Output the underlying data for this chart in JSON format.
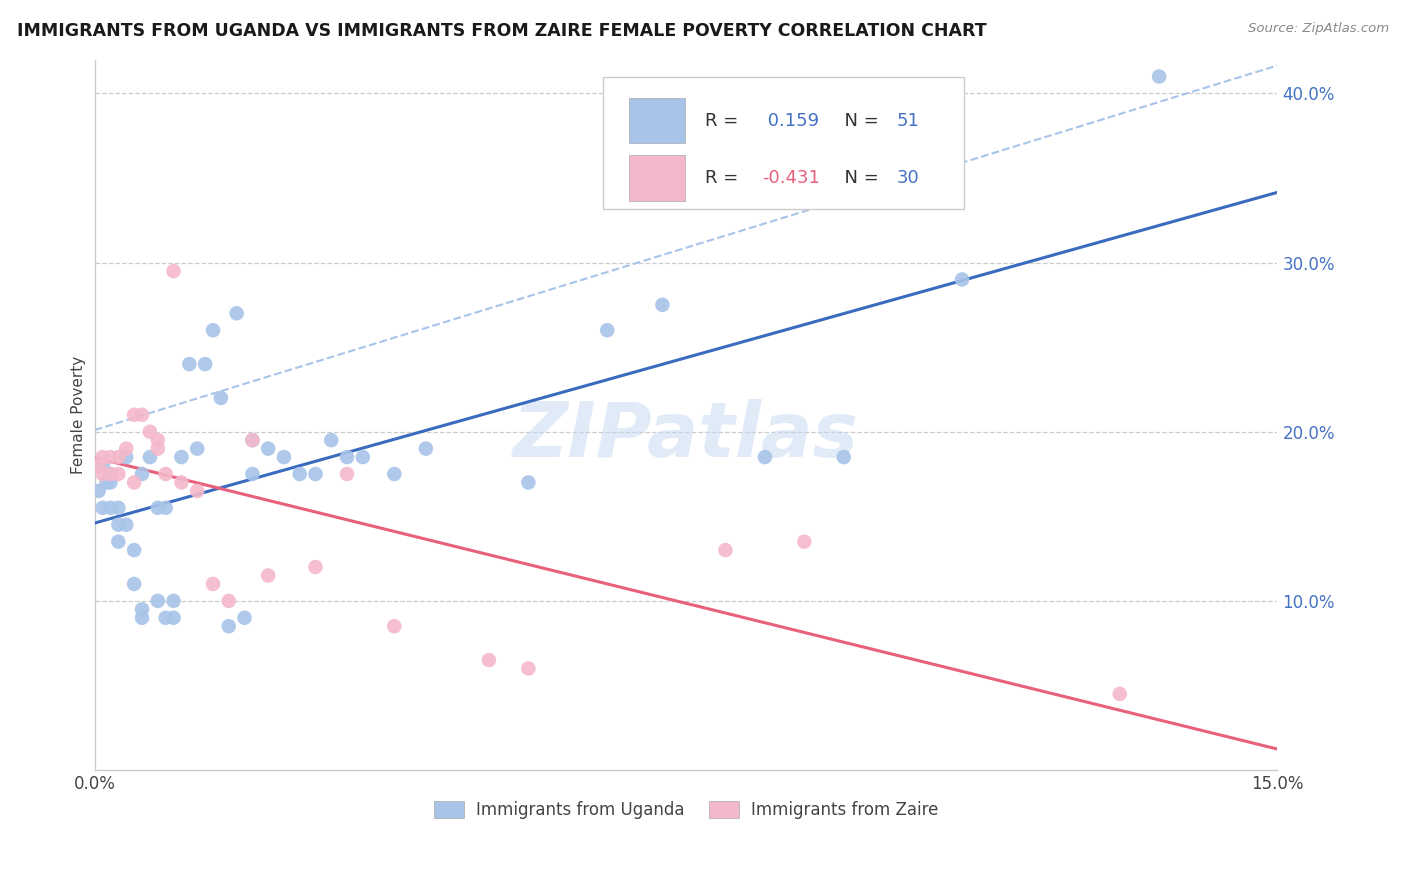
{
  "title": "IMMIGRANTS FROM UGANDA VS IMMIGRANTS FROM ZAIRE FEMALE POVERTY CORRELATION CHART",
  "source": "Source: ZipAtlas.com",
  "ylabel": "Female Poverty",
  "xlim": [
    0.0,
    0.15
  ],
  "ylim": [
    0.0,
    0.42
  ],
  "uganda_color": "#a8c4e8",
  "zaire_color": "#f4b8cb",
  "uganda_line_color": "#3a6bbf",
  "zaire_line_color": "#e8607a",
  "dash_line_color": "#a8c4e8",
  "R_uganda": 0.159,
  "N_uganda": 51,
  "R_zaire": -0.431,
  "N_zaire": 30,
  "legend_label_uganda": "Immigrants from Uganda",
  "legend_label_zaire": "Immigrants from Zaire",
  "watermark": "ZIPatlas",
  "text_color": "#444444",
  "right_axis_color": "#4472c4",
  "grid_color": "#cccccc",
  "uganda_x": [
    0.0005,
    0.001,
    0.001,
    0.0015,
    0.002,
    0.002,
    0.002,
    0.003,
    0.003,
    0.003,
    0.004,
    0.004,
    0.005,
    0.005,
    0.006,
    0.006,
    0.006,
    0.007,
    0.008,
    0.008,
    0.009,
    0.009,
    0.01,
    0.01,
    0.011,
    0.012,
    0.013,
    0.014,
    0.015,
    0.016,
    0.017,
    0.018,
    0.019,
    0.02,
    0.02,
    0.022,
    0.024,
    0.026,
    0.028,
    0.03,
    0.032,
    0.034,
    0.038,
    0.042,
    0.055,
    0.065,
    0.072,
    0.085,
    0.095,
    0.11,
    0.135
  ],
  "uganda_y": [
    0.165,
    0.18,
    0.155,
    0.17,
    0.17,
    0.155,
    0.175,
    0.155,
    0.145,
    0.135,
    0.145,
    0.185,
    0.13,
    0.11,
    0.095,
    0.09,
    0.175,
    0.185,
    0.1,
    0.155,
    0.09,
    0.155,
    0.1,
    0.09,
    0.185,
    0.24,
    0.19,
    0.24,
    0.26,
    0.22,
    0.085,
    0.27,
    0.09,
    0.175,
    0.195,
    0.19,
    0.185,
    0.175,
    0.175,
    0.195,
    0.185,
    0.185,
    0.175,
    0.19,
    0.17,
    0.26,
    0.275,
    0.185,
    0.185,
    0.29,
    0.41
  ],
  "zaire_x": [
    0.0005,
    0.001,
    0.001,
    0.002,
    0.002,
    0.003,
    0.003,
    0.004,
    0.005,
    0.005,
    0.006,
    0.007,
    0.008,
    0.008,
    0.009,
    0.01,
    0.011,
    0.013,
    0.015,
    0.017,
    0.02,
    0.022,
    0.028,
    0.032,
    0.038,
    0.05,
    0.055,
    0.08,
    0.09,
    0.13
  ],
  "zaire_y": [
    0.18,
    0.175,
    0.185,
    0.185,
    0.175,
    0.185,
    0.175,
    0.19,
    0.17,
    0.21,
    0.21,
    0.2,
    0.19,
    0.195,
    0.175,
    0.295,
    0.17,
    0.165,
    0.11,
    0.1,
    0.195,
    0.115,
    0.12,
    0.175,
    0.085,
    0.065,
    0.06,
    0.13,
    0.135,
    0.045
  ]
}
